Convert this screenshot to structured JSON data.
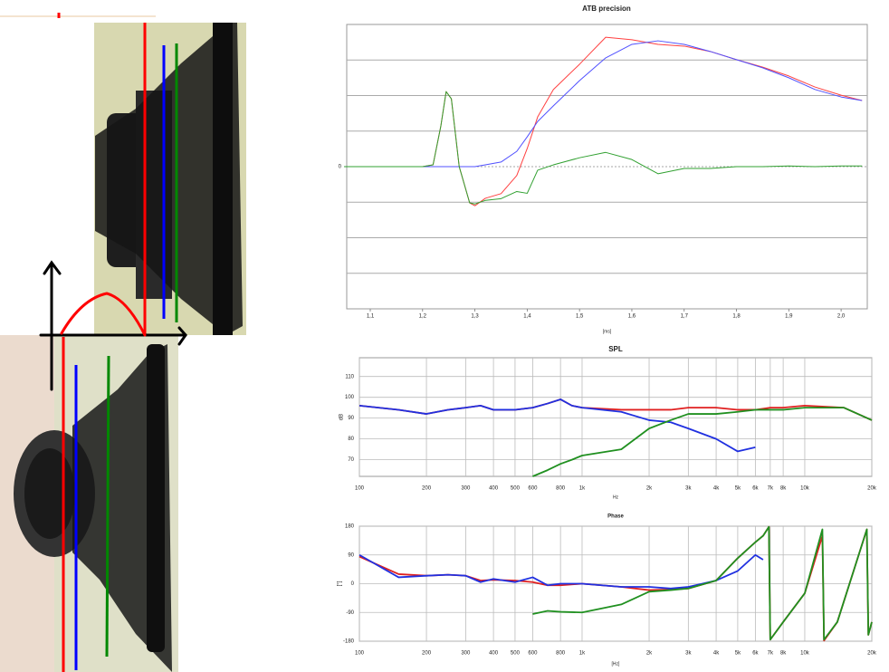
{
  "chart_data": [
    {
      "type": "line",
      "title": "ATB precision",
      "xlabel": "[ms]",
      "x": [
        1.05,
        1.1,
        1.15,
        1.2,
        1.22,
        1.235,
        1.245,
        1.255,
        1.27,
        1.29,
        1.3,
        1.32,
        1.35,
        1.38,
        1.4,
        1.42,
        1.45,
        1.5,
        1.55,
        1.6,
        1.65,
        1.7,
        1.75,
        1.8,
        1.85,
        1.9,
        1.95,
        2.0,
        2.04
      ],
      "series": [
        {
          "name": "red",
          "color": "#ff4040",
          "values": [
            0,
            0,
            0,
            0,
            0.05,
            1.15,
            2.11,
            1.91,
            0,
            -1.02,
            -1.1,
            -0.89,
            -0.76,
            -0.25,
            0.51,
            1.4,
            2.17,
            2.88,
            3.64,
            3.57,
            3.44,
            3.39,
            3.24,
            3.01,
            2.8,
            2.55,
            2.24,
            2.01,
            1.86
          ]
        },
        {
          "name": "blue",
          "color": "#5050ff",
          "values": [
            0,
            0,
            0,
            0,
            0,
            0,
            0,
            0,
            0,
            0,
            0,
            0.05,
            0.13,
            0.43,
            0.84,
            1.27,
            1.71,
            2.42,
            3.06,
            3.44,
            3.54,
            3.44,
            3.24,
            3.01,
            2.78,
            2.5,
            2.17,
            1.96,
            1.86
          ]
        },
        {
          "name": "green",
          "color": "#30a030",
          "values": [
            0,
            0,
            0,
            0,
            0.05,
            1.15,
            2.11,
            1.91,
            0,
            -1.02,
            -1.05,
            -0.95,
            -0.9,
            -0.7,
            -0.75,
            -0.1,
            0.05,
            0.25,
            0.4,
            0.2,
            -0.2,
            -0.05,
            -0.05,
            0,
            0,
            0.02,
            0,
            0.02,
            0.02
          ]
        }
      ],
      "xlim": [
        1.055,
        2.05
      ],
      "xticks": [
        {
          "value": 1.1,
          "label": "1,1"
        },
        {
          "value": 1.2,
          "label": "1,2"
        },
        {
          "value": 1.3,
          "label": "1,3"
        },
        {
          "value": 1.4,
          "label": "1,4"
        },
        {
          "value": 1.5,
          "label": "1,5"
        },
        {
          "value": 1.6,
          "label": "1,6"
        },
        {
          "value": 1.7,
          "label": "1,7"
        },
        {
          "value": 1.8,
          "label": "1,8"
        },
        {
          "value": 1.9,
          "label": "1,9"
        },
        {
          "value": 2.0,
          "label": "2,0"
        }
      ],
      "ylim": [
        -4,
        4
      ],
      "yticks": [
        0
      ],
      "grid_lines": [
        -3,
        -2,
        -1,
        1,
        2,
        3
      ],
      "line_width": 1
    },
    {
      "type": "line",
      "title": "SPL",
      "xlabel": "Hz",
      "ylabel": "dB",
      "log_x": true,
      "grid": true,
      "x": [
        100,
        150,
        200,
        250,
        300,
        350,
        400,
        500,
        600,
        700,
        800,
        900,
        1000,
        1500,
        2000,
        2500,
        3000,
        4000,
        5000,
        6000,
        7000,
        8000,
        10000,
        15000,
        20000
      ],
      "series": [
        {
          "name": "red",
          "color": "#e02020",
          "values": [
            96,
            94,
            92,
            94,
            95,
            96,
            94,
            94,
            95,
            97,
            99,
            96,
            95,
            94,
            94,
            94,
            95,
            95,
            94,
            94,
            95,
            95,
            96,
            95,
            89
          ]
        },
        {
          "name": "blue",
          "color": "#2030e0",
          "values": [
            96,
            94,
            92,
            94,
            95,
            96,
            94,
            94,
            95,
            97,
            99,
            96,
            95,
            93,
            89,
            88,
            85,
            80,
            74,
            76,
            null,
            null,
            null,
            null,
            null
          ]
        },
        {
          "name": "green",
          "color": "#209020",
          "values": [
            null,
            null,
            null,
            null,
            null,
            null,
            null,
            null,
            62,
            65,
            68,
            70,
            72,
            75,
            85,
            89,
            92,
            92,
            93,
            94,
            94,
            94,
            95,
            95,
            89
          ]
        }
      ],
      "xlim": [
        100,
        20000
      ],
      "xticks": [
        100,
        200,
        300,
        400,
        500,
        600,
        800,
        {
          "value": 1000,
          "label": "1k"
        },
        {
          "value": 2000,
          "label": "2k"
        },
        {
          "value": 3000,
          "label": "3k"
        },
        {
          "value": 4000,
          "label": "4k"
        },
        {
          "value": 5000,
          "label": "5k"
        },
        {
          "value": 6000,
          "label": "6k"
        },
        {
          "value": 7000,
          "label": "7k"
        },
        {
          "value": 8000,
          "label": "8k"
        },
        {
          "value": 10000,
          "label": "10k"
        },
        {
          "value": 20000,
          "label": "20k"
        }
      ],
      "ylim": [
        62,
        119
      ],
      "yticks": [
        70,
        80,
        90,
        100,
        110
      ],
      "line_width": 1.8
    },
    {
      "type": "line",
      "title": "Phase",
      "xlabel": "[Hz]",
      "ylabel": "[°]",
      "log_x": true,
      "grid": true,
      "x": [
        100,
        150,
        200,
        250,
        300,
        350,
        400,
        500,
        600,
        700,
        800,
        1000,
        1500,
        2000,
        2500,
        3000,
        4000,
        5000,
        6000,
        6500,
        6900,
        7000,
        8000,
        10000,
        12000,
        12200,
        14000,
        19000,
        19300,
        20000
      ],
      "series": [
        {
          "name": "red",
          "color": "#e02020",
          "values": [
            85,
            30,
            25,
            28,
            25,
            10,
            12,
            10,
            5,
            -5,
            -5,
            0,
            -10,
            -20,
            -18,
            -15,
            10,
            80,
            130,
            150,
            178,
            -175,
            -120,
            -30,
            150,
            -178,
            -120,
            170,
            -160,
            -120
          ]
        },
        {
          "name": "blue",
          "color": "#2030e0",
          "values": [
            90,
            20,
            25,
            28,
            25,
            5,
            15,
            5,
            20,
            -5,
            0,
            0,
            -10,
            -10,
            -15,
            -10,
            10,
            40,
            90,
            75,
            null,
            null,
            null,
            null,
            null,
            null,
            null,
            null,
            null,
            null
          ]
        },
        {
          "name": "green",
          "color": "#209020",
          "values": [
            null,
            null,
            null,
            null,
            null,
            null,
            null,
            null,
            -95,
            -85,
            -88,
            -90,
            -65,
            -25,
            -20,
            -15,
            10,
            80,
            130,
            150,
            178,
            -175,
            -120,
            -30,
            170,
            -175,
            -120,
            170,
            -160,
            -120
          ]
        }
      ],
      "xlim": [
        100,
        20000
      ],
      "xticks": [
        100,
        200,
        300,
        400,
        500,
        600,
        800,
        {
          "value": 1000,
          "label": "1k"
        },
        {
          "value": 2000,
          "label": "2k"
        },
        {
          "value": 3000,
          "label": "3k"
        },
        {
          "value": 4000,
          "label": "4k"
        },
        {
          "value": 5000,
          "label": "5k"
        },
        {
          "value": 6000,
          "label": "6k"
        },
        {
          "value": 7000,
          "label": "7k"
        },
        {
          "value": 8000,
          "label": "8k"
        },
        {
          "value": 10000,
          "label": "10k"
        },
        {
          "value": 20000,
          "label": "20k"
        }
      ],
      "ylim": [
        -180,
        180
      ],
      "yticks": [
        -180,
        -90,
        0,
        90,
        180
      ],
      "line_width": 1.8
    }
  ]
}
